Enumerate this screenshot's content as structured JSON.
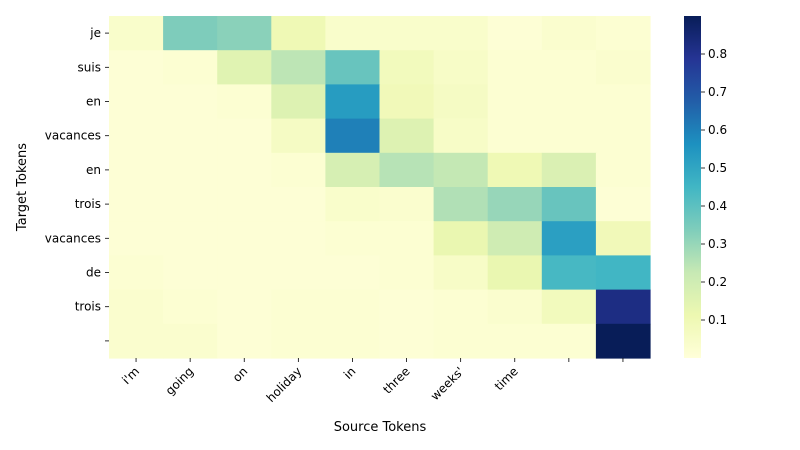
{
  "chart_data": {
    "type": "heatmap",
    "title": "",
    "xlabel": "Source Tokens",
    "ylabel": "Target Tokens",
    "x_tokens": [
      "i'm",
      "going",
      "on",
      "holiday",
      "in",
      "three",
      "weeks'",
      "time",
      "",
      ""
    ],
    "y_tokens": [
      "je",
      "suis",
      "en",
      "vacances",
      "en",
      "trois",
      "vacances",
      "de",
      "trois",
      ""
    ],
    "values": [
      [
        0.04,
        0.34,
        0.32,
        0.1,
        0.04,
        0.04,
        0.04,
        0.01,
        0.03,
        0.02
      ],
      [
        0.01,
        0.02,
        0.15,
        0.24,
        0.38,
        0.08,
        0.05,
        0.02,
        0.02,
        0.03
      ],
      [
        0.01,
        0.01,
        0.02,
        0.16,
        0.53,
        0.09,
        0.06,
        0.02,
        0.02,
        0.02
      ],
      [
        0.01,
        0.01,
        0.01,
        0.06,
        0.6,
        0.16,
        0.05,
        0.02,
        0.02,
        0.02
      ],
      [
        0.01,
        0.01,
        0.01,
        0.02,
        0.18,
        0.25,
        0.23,
        0.1,
        0.17,
        0.02
      ],
      [
        0.01,
        0.01,
        0.01,
        0.01,
        0.04,
        0.03,
        0.26,
        0.3,
        0.38,
        0.01
      ],
      [
        0.01,
        0.01,
        0.01,
        0.01,
        0.02,
        0.02,
        0.12,
        0.2,
        0.52,
        0.09
      ],
      [
        0.02,
        0.01,
        0.01,
        0.01,
        0.01,
        0.02,
        0.05,
        0.12,
        0.44,
        0.45
      ],
      [
        0.03,
        0.02,
        0.01,
        0.02,
        0.02,
        0.01,
        0.02,
        0.03,
        0.08,
        0.82
      ],
      [
        0.03,
        0.03,
        0.01,
        0.02,
        0.02,
        0.01,
        0.02,
        0.02,
        0.02,
        0.9
      ]
    ],
    "colormap": "YlGnBu",
    "colorbar": {
      "vmin": 0.0,
      "vmax": 0.9,
      "ticks": [
        0.1,
        0.2,
        0.3,
        0.4,
        0.5,
        0.6,
        0.7,
        0.8
      ],
      "tick_labels": [
        "0.1",
        "0.2",
        "0.3",
        "0.4",
        "0.5",
        "0.6",
        "0.7",
        "0.8"
      ]
    },
    "grid": false
  }
}
